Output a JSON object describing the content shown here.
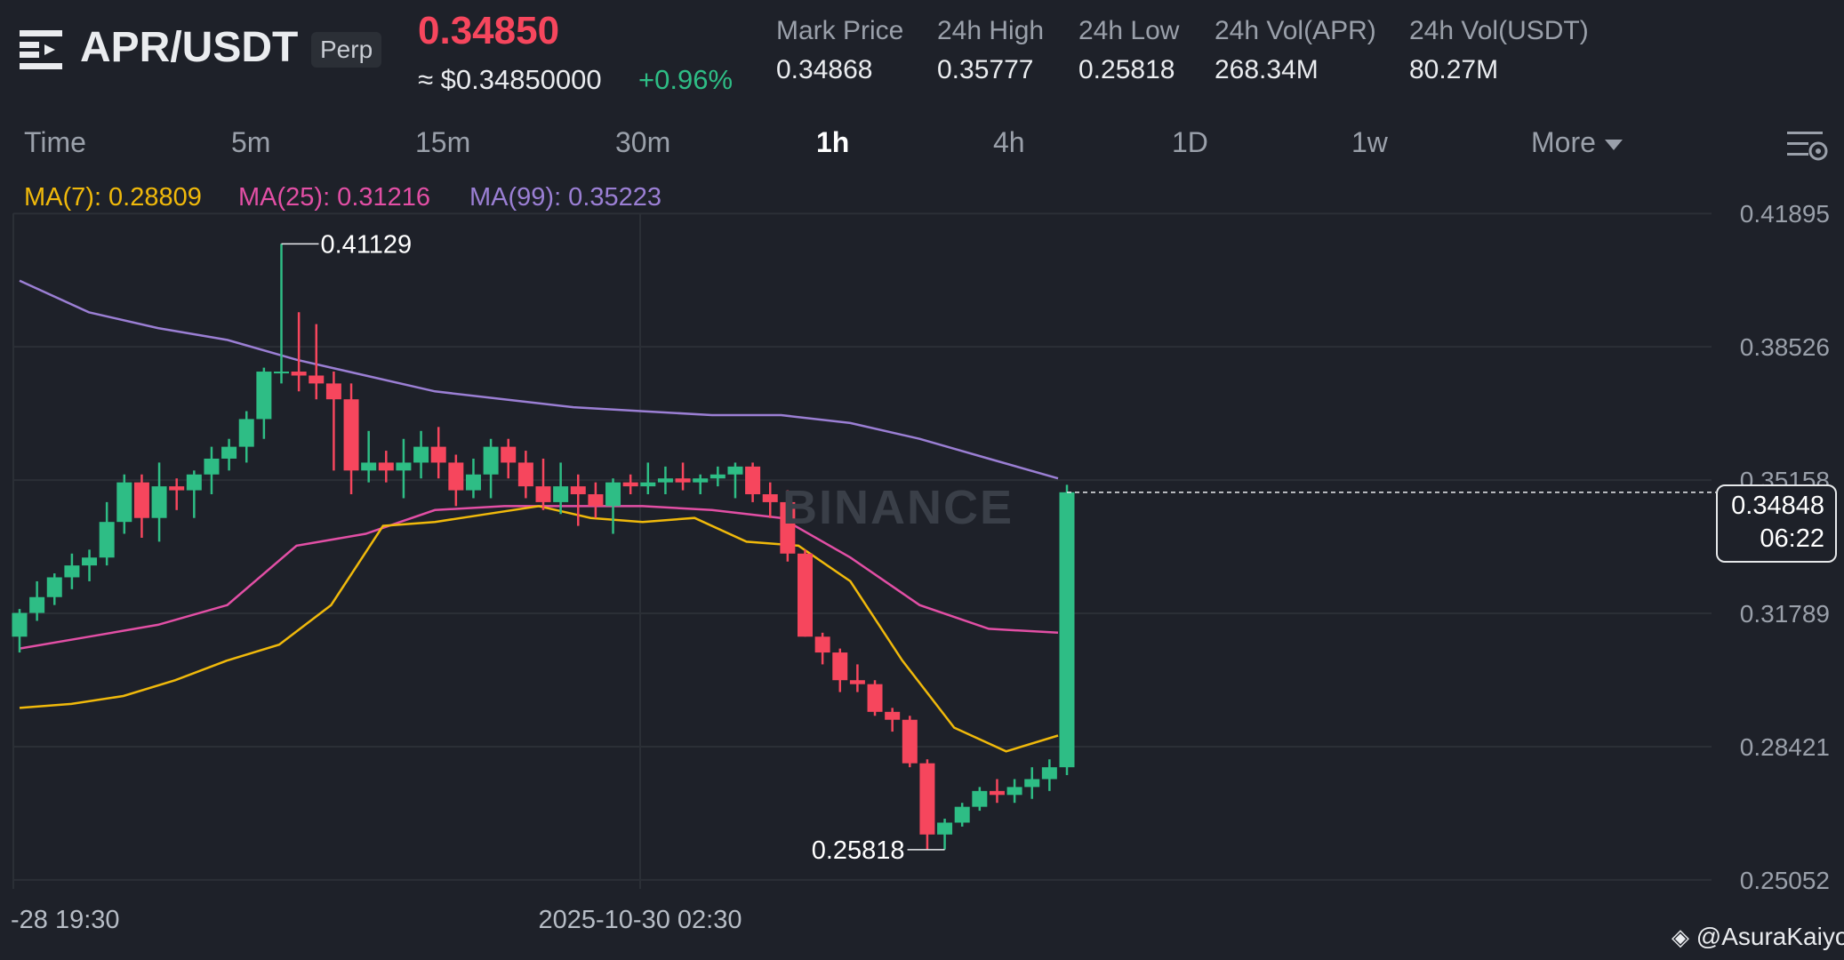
{
  "header": {
    "pair": "APR/USDT",
    "badge": "Perp",
    "last_price": "0.34850",
    "usd_price": "≈ $0.34850000",
    "change": "+0.96%",
    "stats": [
      {
        "label": "Mark Price",
        "value": "0.34868"
      },
      {
        "label": "24h High",
        "value": "0.35777"
      },
      {
        "label": "24h Low",
        "value": "0.25818"
      },
      {
        "label": "24h Vol(APR)",
        "value": "268.34M"
      },
      {
        "label": "24h Vol(USDT)",
        "value": "80.27M"
      }
    ]
  },
  "tabs": [
    "Time",
    "5m",
    "15m",
    "30m",
    "1h",
    "4h",
    "1D",
    "1w",
    "More"
  ],
  "active_tab": "1h",
  "indicators": {
    "ma7": "MA(7): 0.28809",
    "ma25": "MA(25): 0.31216",
    "ma99": "MA(99): 0.35223"
  },
  "price_tag": {
    "price": "0.34848",
    "countdown": "06:22"
  },
  "watermark": "BINANCE",
  "credit": "@AsuraKaiyo",
  "colors": {
    "up": "#2ebd85",
    "down": "#f6465d",
    "ma7": "#f0b90b",
    "ma25": "#e24fa5",
    "ma99": "#9b7fd4"
  },
  "chart_data": {
    "type": "candlestick",
    "y_axis_ticks": [
      "0.41895",
      "0.38526",
      "0.35158",
      "0.31789",
      "0.28421",
      "0.25052"
    ],
    "ylim": [
      0.2505,
      0.419
    ],
    "x_axis_ticks": [
      "-28 19:30",
      "2025-10-30 02:30"
    ],
    "annotations": {
      "high": "0.41129",
      "low": "0.25818"
    },
    "candles": [
      [
        0.312,
        0.319,
        0.308,
        0.318
      ],
      [
        0.318,
        0.326,
        0.316,
        0.322
      ],
      [
        0.322,
        0.328,
        0.32,
        0.327
      ],
      [
        0.327,
        0.333,
        0.324,
        0.33
      ],
      [
        0.33,
        0.334,
        0.326,
        0.332
      ],
      [
        0.332,
        0.346,
        0.33,
        0.341
      ],
      [
        0.341,
        0.353,
        0.338,
        0.351
      ],
      [
        0.351,
        0.353,
        0.337,
        0.342
      ],
      [
        0.342,
        0.356,
        0.336,
        0.35
      ],
      [
        0.35,
        0.352,
        0.344,
        0.349
      ],
      [
        0.349,
        0.354,
        0.342,
        0.353
      ],
      [
        0.353,
        0.36,
        0.348,
        0.357
      ],
      [
        0.357,
        0.362,
        0.354,
        0.36
      ],
      [
        0.36,
        0.369,
        0.356,
        0.367
      ],
      [
        0.367,
        0.38,
        0.362,
        0.379
      ],
      [
        0.379,
        0.4113,
        0.376,
        0.379
      ],
      [
        0.379,
        0.394,
        0.374,
        0.378
      ],
      [
        0.378,
        0.391,
        0.372,
        0.376
      ],
      [
        0.376,
        0.379,
        0.354,
        0.372
      ],
      [
        0.372,
        0.376,
        0.348,
        0.354
      ],
      [
        0.354,
        0.364,
        0.351,
        0.356
      ],
      [
        0.356,
        0.359,
        0.351,
        0.354
      ],
      [
        0.354,
        0.362,
        0.347,
        0.356
      ],
      [
        0.356,
        0.364,
        0.352,
        0.36
      ],
      [
        0.36,
        0.365,
        0.352,
        0.356
      ],
      [
        0.356,
        0.358,
        0.345,
        0.349
      ],
      [
        0.349,
        0.357,
        0.347,
        0.353
      ],
      [
        0.353,
        0.362,
        0.347,
        0.36
      ],
      [
        0.36,
        0.362,
        0.352,
        0.356
      ],
      [
        0.356,
        0.359,
        0.347,
        0.35
      ],
      [
        0.35,
        0.357,
        0.344,
        0.346
      ],
      [
        0.346,
        0.356,
        0.343,
        0.35
      ],
      [
        0.35,
        0.353,
        0.34,
        0.348
      ],
      [
        0.348,
        0.351,
        0.342,
        0.345
      ],
      [
        0.345,
        0.352,
        0.338,
        0.351
      ],
      [
        0.351,
        0.353,
        0.348,
        0.35
      ],
      [
        0.35,
        0.356,
        0.348,
        0.351
      ],
      [
        0.351,
        0.355,
        0.348,
        0.352
      ],
      [
        0.352,
        0.356,
        0.349,
        0.351
      ],
      [
        0.351,
        0.353,
        0.348,
        0.352
      ],
      [
        0.352,
        0.355,
        0.35,
        0.353
      ],
      [
        0.353,
        0.356,
        0.347,
        0.355
      ],
      [
        0.355,
        0.356,
        0.346,
        0.348
      ],
      [
        0.348,
        0.351,
        0.342,
        0.346
      ],
      [
        0.346,
        0.349,
        0.331,
        0.333
      ],
      [
        0.333,
        0.334,
        0.312,
        0.312
      ],
      [
        0.312,
        0.313,
        0.305,
        0.308
      ],
      [
        0.308,
        0.309,
        0.298,
        0.301
      ],
      [
        0.301,
        0.305,
        0.298,
        0.3
      ],
      [
        0.3,
        0.301,
        0.292,
        0.293
      ],
      [
        0.293,
        0.294,
        0.288,
        0.291
      ],
      [
        0.291,
        0.292,
        0.279,
        0.28
      ],
      [
        0.28,
        0.281,
        0.2582,
        0.262
      ],
      [
        0.262,
        0.266,
        0.2582,
        0.265
      ],
      [
        0.265,
        0.27,
        0.264,
        0.269
      ],
      [
        0.269,
        0.274,
        0.268,
        0.273
      ],
      [
        0.273,
        0.276,
        0.27,
        0.272
      ],
      [
        0.272,
        0.276,
        0.27,
        0.274
      ],
      [
        0.274,
        0.279,
        0.271,
        0.276
      ],
      [
        0.276,
        0.281,
        0.273,
        0.279
      ],
      [
        0.279,
        0.3504,
        0.277,
        0.3485
      ]
    ],
    "ma7": [
      0.294,
      0.295,
      0.297,
      0.301,
      0.306,
      0.31,
      0.32,
      0.34,
      0.341,
      0.343,
      0.345,
      0.342,
      0.341,
      0.342,
      0.336,
      0.335,
      0.326,
      0.306,
      0.289,
      0.283,
      0.287
    ],
    "ma25": [
      0.309,
      0.312,
      0.315,
      0.32,
      0.335,
      0.338,
      0.344,
      0.345,
      0.345,
      0.345,
      0.344,
      0.342,
      0.332,
      0.32,
      0.314,
      0.313
    ],
    "ma99": [
      0.402,
      0.394,
      0.39,
      0.387,
      0.382,
      0.378,
      0.374,
      0.372,
      0.37,
      0.369,
      0.368,
      0.368,
      0.366,
      0.362,
      0.357,
      0.352
    ]
  }
}
